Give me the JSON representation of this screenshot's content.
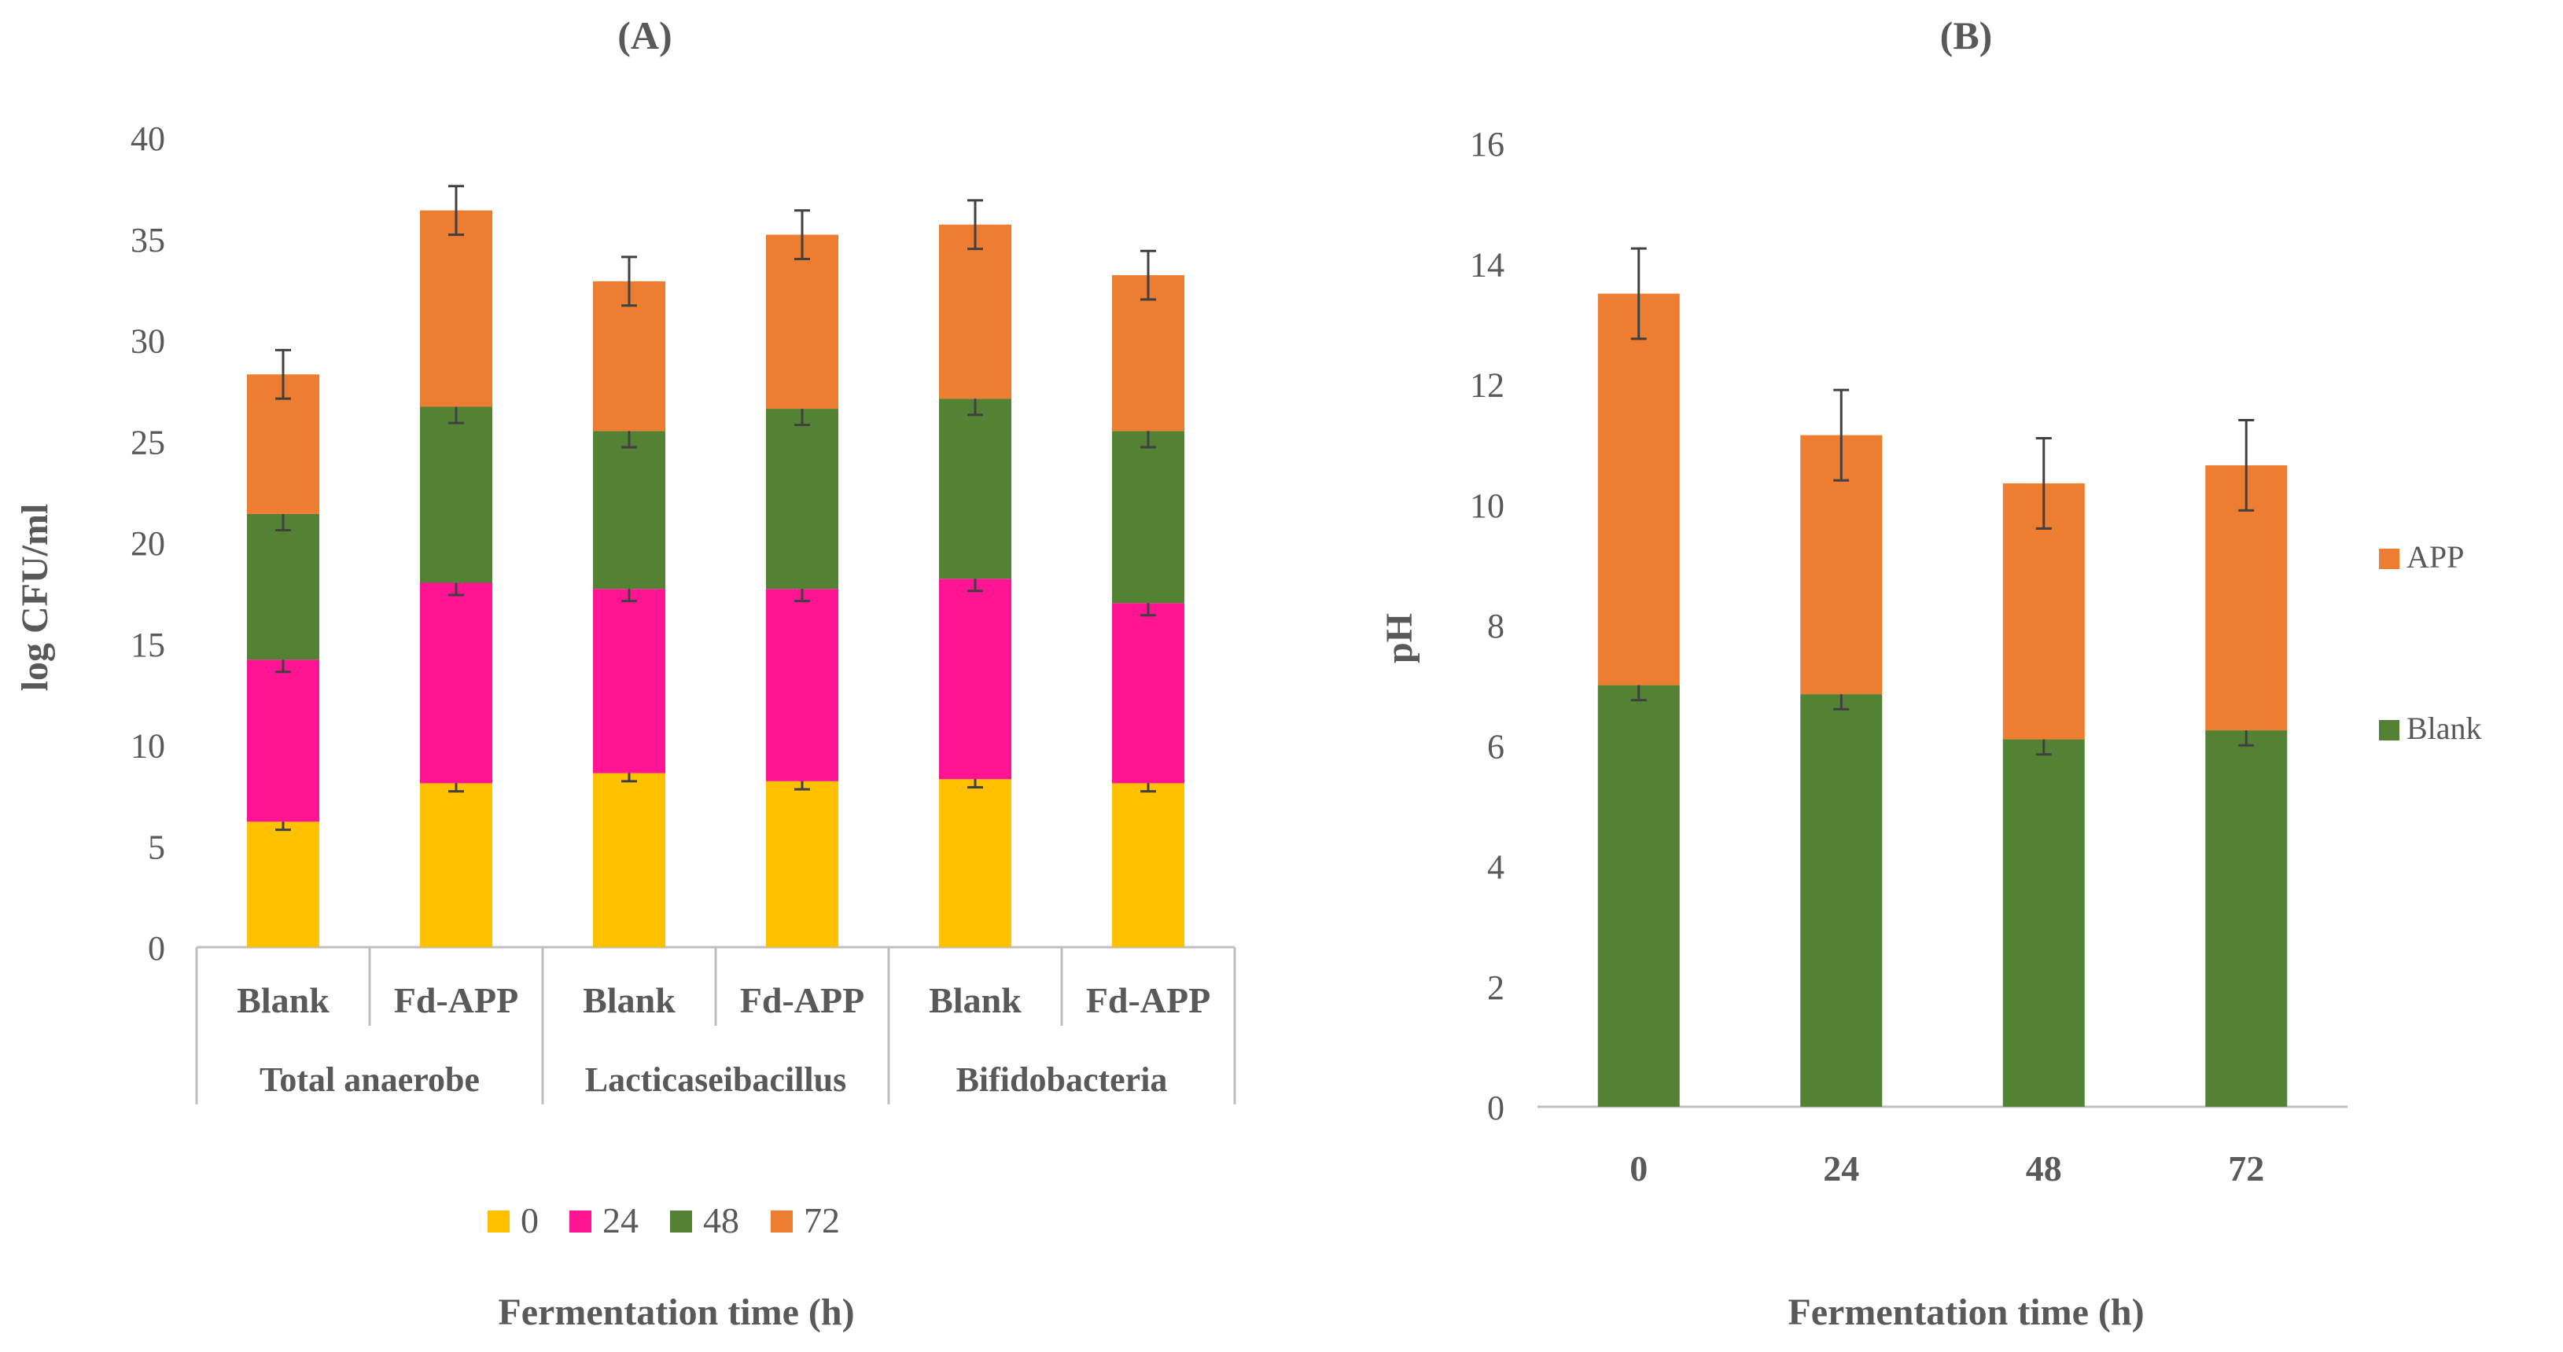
{
  "chart_data": [
    {
      "panel": "(A)",
      "type": "stacked-bar",
      "title": "(A)",
      "xlabel": "Fermentation time (h)",
      "ylabel": "log CFU/ml",
      "ylim": [
        0,
        40
      ],
      "yticks": [
        0,
        5,
        10,
        15,
        20,
        25,
        30,
        35,
        40
      ],
      "groups": [
        "Total anaerobe",
        "Lacticaseibacillus",
        "Bifidobacteria"
      ],
      "categories": [
        "Blank",
        "Fd-APP",
        "Blank",
        "Fd-APP",
        "Blank",
        "Fd-APP"
      ],
      "legend_position": "bottom",
      "series": [
        {
          "name": "0",
          "color": "#FFC000",
          "values": [
            6.2,
            8.1,
            8.6,
            8.2,
            8.3,
            8.1
          ],
          "errors": [
            0.4,
            0.4,
            0.4,
            0.4,
            0.4,
            0.4
          ]
        },
        {
          "name": "24",
          "color": "#FF1493",
          "values": [
            8.0,
            9.9,
            9.1,
            9.5,
            9.9,
            8.9
          ],
          "errors": [
            0.6,
            0.6,
            0.6,
            0.6,
            0.6,
            0.6
          ]
        },
        {
          "name": "48",
          "color": "#548235",
          "values": [
            7.2,
            8.7,
            7.8,
            8.9,
            8.9,
            8.5
          ],
          "errors": [
            0.8,
            0.8,
            0.8,
            0.8,
            0.8,
            0.8
          ]
        },
        {
          "name": "72",
          "color": "#ED7D31",
          "values": [
            6.9,
            9.7,
            7.4,
            8.6,
            8.6,
            7.7
          ],
          "errors": [
            1.2,
            1.2,
            1.2,
            1.2,
            1.2,
            1.2
          ]
        }
      ]
    },
    {
      "panel": "(B)",
      "type": "stacked-bar",
      "title": "(B)",
      "xlabel": "Fermentation time (h)",
      "ylabel": "pH",
      "ylim": [
        0,
        16
      ],
      "yticks": [
        0,
        2,
        4,
        6,
        8,
        10,
        12,
        14,
        16
      ],
      "categories": [
        "0",
        "24",
        "48",
        "72"
      ],
      "legend_position": "right",
      "series": [
        {
          "name": "Blank",
          "color": "#548235",
          "values": [
            7.0,
            6.85,
            6.1,
            6.25
          ],
          "errors": [
            0.25,
            0.25,
            0.25,
            0.25
          ]
        },
        {
          "name": "APP",
          "color": "#ED7D31",
          "values": [
            6.5,
            4.3,
            4.25,
            4.4
          ],
          "errors": [
            0.75,
            0.75,
            0.75,
            0.75
          ]
        }
      ]
    }
  ]
}
